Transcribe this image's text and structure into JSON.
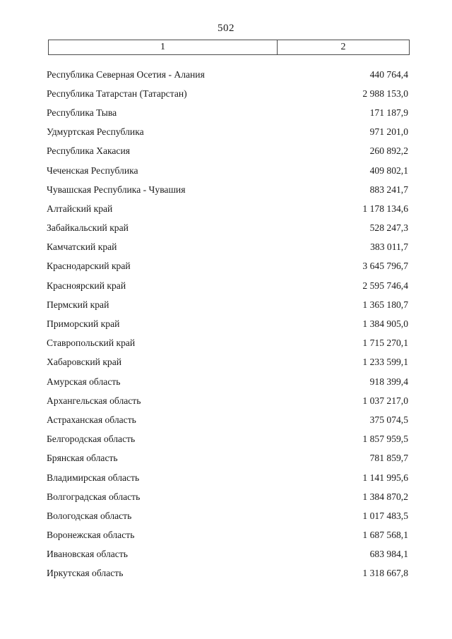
{
  "page": {
    "number": "502"
  },
  "table": {
    "header": {
      "col1": "1",
      "col2": "2"
    },
    "rows": [
      {
        "name": "Республика Северная Осетия - Алания",
        "value": "440 764,4"
      },
      {
        "name": "Республика Татарстан (Татарстан)",
        "value": "2 988 153,0"
      },
      {
        "name": "Республика Тыва",
        "value": "171 187,9"
      },
      {
        "name": "Удмуртская Республика",
        "value": "971 201,0"
      },
      {
        "name": "Республика Хакасия",
        "value": "260 892,2"
      },
      {
        "name": "Чеченская Республика",
        "value": "409 802,1"
      },
      {
        "name": "Чувашская Республика - Чувашия",
        "value": "883 241,7"
      },
      {
        "name": "Алтайский край",
        "value": "1 178 134,6"
      },
      {
        "name": "Забайкальский край",
        "value": "528 247,3"
      },
      {
        "name": "Камчатский край",
        "value": "383 011,7"
      },
      {
        "name": "Краснодарский край",
        "value": "3 645 796,7"
      },
      {
        "name": "Красноярский край",
        "value": "2 595 746,4"
      },
      {
        "name": "Пермский край",
        "value": "1 365 180,7"
      },
      {
        "name": "Приморский край",
        "value": "1 384 905,0"
      },
      {
        "name": "Ставропольский край",
        "value": "1 715 270,1"
      },
      {
        "name": "Хабаровский край",
        "value": "1 233 599,1"
      },
      {
        "name": "Амурская область",
        "value": "918 399,4"
      },
      {
        "name": "Архангельская область",
        "value": "1 037 217,0"
      },
      {
        "name": "Астраханская область",
        "value": "375 074,5"
      },
      {
        "name": "Белгородская область",
        "value": "1 857 959,5"
      },
      {
        "name": "Брянская область",
        "value": "781 859,7"
      },
      {
        "name": "Владимирская область",
        "value": "1 141 995,6"
      },
      {
        "name": "Волгоградская область",
        "value": "1 384 870,2"
      },
      {
        "name": "Вологодская область",
        "value": "1 017 483,5"
      },
      {
        "name": "Воронежская область",
        "value": "1 687 568,1"
      },
      {
        "name": "Ивановская область",
        "value": "683 984,1"
      },
      {
        "name": "Иркутская область",
        "value": "1 318 667,8"
      }
    ]
  }
}
